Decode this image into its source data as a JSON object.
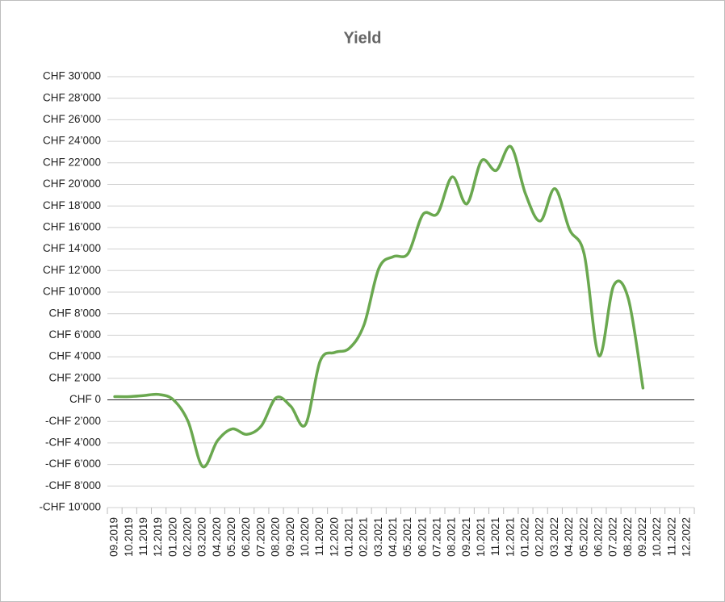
{
  "chart_data": {
    "type": "line",
    "title": "Yield",
    "categories": [
      "09.2019",
      "10.2019",
      "11.2019",
      "12.2019",
      "01.2020",
      "02.2020",
      "03.2020",
      "04.2020",
      "05.2020",
      "06.2020",
      "07.2020",
      "08.2020",
      "09.2020",
      "10.2020",
      "11.2020",
      "12.2020",
      "01.2021",
      "02.2021",
      "03.2021",
      "04.2021",
      "05.2021",
      "06.2021",
      "07.2021",
      "08.2021",
      "09.2021",
      "10.2021",
      "11.2021",
      "12.2021",
      "01.2022",
      "02.2022",
      "03.2022",
      "04.2022",
      "05.2022",
      "06.2022",
      "07.2022",
      "08.2022",
      "09.2022",
      "10.2022",
      "11.2022",
      "12.2022"
    ],
    "series": [
      {
        "name": "Yield",
        "color": "#6aa84f",
        "values": [
          300,
          300,
          400,
          500,
          0,
          -2000,
          -6200,
          -3800,
          -2700,
          -3200,
          -2400,
          200,
          -600,
          -2300,
          3600,
          4400,
          4800,
          7000,
          12200,
          13300,
          13600,
          17200,
          17300,
          20700,
          18200,
          22200,
          21300,
          23500,
          19100,
          16600,
          19600,
          15800,
          13500,
          4100,
          10600,
          9400,
          1100,
          null,
          null,
          null
        ]
      }
    ],
    "ylim": [
      -10000,
      30000
    ],
    "yticks": [
      {
        "value": -10000,
        "label": "-CHF 10’000"
      },
      {
        "value": -8000,
        "label": "-CHF 8’000"
      },
      {
        "value": -6000,
        "label": "-CHF 6’000"
      },
      {
        "value": -4000,
        "label": "-CHF 4’000"
      },
      {
        "value": -2000,
        "label": "-CHF 2’000"
      },
      {
        "value": 0,
        "label": "CHF 0"
      },
      {
        "value": 2000,
        "label": "CHF 2’000"
      },
      {
        "value": 4000,
        "label": "CHF 4’000"
      },
      {
        "value": 6000,
        "label": "CHF 6’000"
      },
      {
        "value": 8000,
        "label": "CHF 8’000"
      },
      {
        "value": 10000,
        "label": "CHF 10’000"
      },
      {
        "value": 12000,
        "label": "CHF 12’000"
      },
      {
        "value": 14000,
        "label": "CHF 14’000"
      },
      {
        "value": 16000,
        "label": "CHF 16’000"
      },
      {
        "value": 18000,
        "label": "CHF 18’000"
      },
      {
        "value": 20000,
        "label": "CHF 20’000"
      },
      {
        "value": 22000,
        "label": "CHF 22’000"
      },
      {
        "value": 24000,
        "label": "CHF 24’000"
      },
      {
        "value": 26000,
        "label": "CHF 26’000"
      },
      {
        "value": 28000,
        "label": "CHF 28’000"
      },
      {
        "value": 30000,
        "label": "CHF 30’000"
      }
    ],
    "grid": true,
    "smooth": true
  }
}
